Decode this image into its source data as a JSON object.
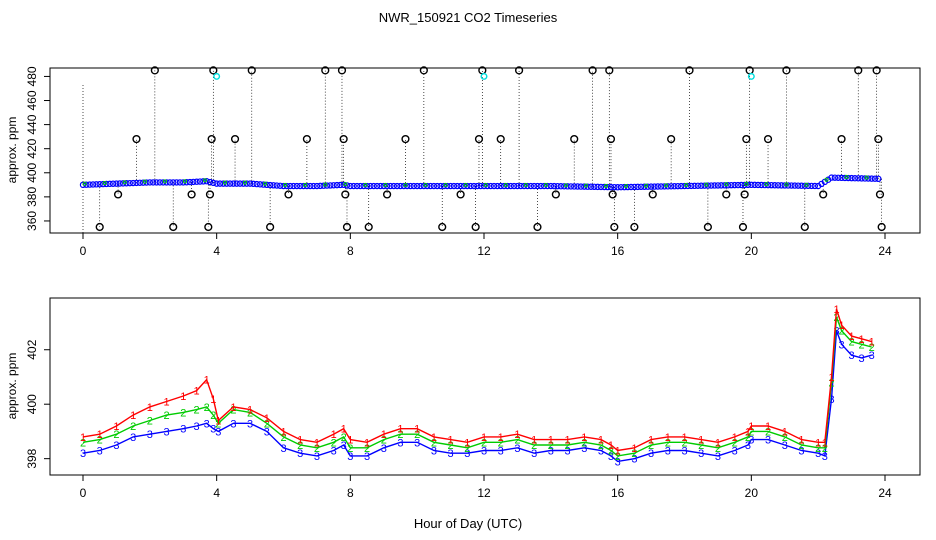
{
  "title": "NWR_150921  CO2 Timeseries",
  "xlabel": "Hour of Day (UTC)",
  "colors": {
    "level1": "#ff0000",
    "level2": "#00cc00",
    "level3": "#0000ff",
    "outlier": "#000000",
    "flag": "#00dddd"
  },
  "chart_data": [
    {
      "type": "scatter",
      "ylabel": "approx. ppm",
      "xlim": [
        0,
        24
      ],
      "ylim": [
        350,
        487
      ],
      "xticks": [
        "0",
        "4",
        "8",
        "12",
        "16",
        "20",
        "24"
      ],
      "yticks": [
        "360",
        "380",
        "400",
        "420",
        "440",
        "460",
        "480"
      ],
      "baseline": [
        {
          "x": 0,
          "y": 390
        },
        {
          "x": 1,
          "y": 391
        },
        {
          "x": 2,
          "y": 392
        },
        {
          "x": 3,
          "y": 392
        },
        {
          "x": 3.7,
          "y": 393
        },
        {
          "x": 4,
          "y": 391
        },
        {
          "x": 5,
          "y": 391
        },
        {
          "x": 6,
          "y": 389
        },
        {
          "x": 7,
          "y": 389
        },
        {
          "x": 7.8,
          "y": 390
        },
        {
          "x": 8,
          "y": 389
        },
        {
          "x": 10,
          "y": 389
        },
        {
          "x": 12,
          "y": 389
        },
        {
          "x": 14,
          "y": 389
        },
        {
          "x": 16,
          "y": 388
        },
        {
          "x": 18,
          "y": 389
        },
        {
          "x": 20,
          "y": 390
        },
        {
          "x": 22,
          "y": 389
        },
        {
          "x": 22.4,
          "y": 396
        },
        {
          "x": 23.8,
          "y": 395
        }
      ],
      "outliers": [
        {
          "x": 0.5,
          "y": 355
        },
        {
          "x": 1.05,
          "y": 382
        },
        {
          "x": 1.6,
          "y": 428
        },
        {
          "x": 2.15,
          "y": 485
        },
        {
          "x": 2.7,
          "y": 355
        },
        {
          "x": 3.25,
          "y": 382
        },
        {
          "x": 3.75,
          "y": 355
        },
        {
          "x": 3.8,
          "y": 382
        },
        {
          "x": 3.85,
          "y": 428
        },
        {
          "x": 3.9,
          "y": 485
        },
        {
          "x": 4.55,
          "y": 428
        },
        {
          "x": 5.05,
          "y": 485
        },
        {
          "x": 5.6,
          "y": 355
        },
        {
          "x": 6.15,
          "y": 382
        },
        {
          "x": 6.7,
          "y": 428
        },
        {
          "x": 7.25,
          "y": 485
        },
        {
          "x": 7.75,
          "y": 485
        },
        {
          "x": 7.8,
          "y": 428
        },
        {
          "x": 7.85,
          "y": 382
        },
        {
          "x": 7.9,
          "y": 355
        },
        {
          "x": 8.55,
          "y": 355
        },
        {
          "x": 9.1,
          "y": 382
        },
        {
          "x": 9.65,
          "y": 428
        },
        {
          "x": 10.2,
          "y": 485
        },
        {
          "x": 10.75,
          "y": 355
        },
        {
          "x": 11.3,
          "y": 382
        },
        {
          "x": 11.75,
          "y": 355
        },
        {
          "x": 11.85,
          "y": 428
        },
        {
          "x": 11.95,
          "y": 485
        },
        {
          "x": 12.5,
          "y": 428
        },
        {
          "x": 13.05,
          "y": 485
        },
        {
          "x": 13.6,
          "y": 355
        },
        {
          "x": 14.15,
          "y": 382
        },
        {
          "x": 14.7,
          "y": 428
        },
        {
          "x": 15.25,
          "y": 485
        },
        {
          "x": 15.75,
          "y": 485
        },
        {
          "x": 15.8,
          "y": 428
        },
        {
          "x": 15.85,
          "y": 382
        },
        {
          "x": 15.9,
          "y": 355
        },
        {
          "x": 16.5,
          "y": 355
        },
        {
          "x": 17.05,
          "y": 382
        },
        {
          "x": 17.6,
          "y": 428
        },
        {
          "x": 18.15,
          "y": 485
        },
        {
          "x": 18.7,
          "y": 355
        },
        {
          "x": 19.25,
          "y": 382
        },
        {
          "x": 19.75,
          "y": 355
        },
        {
          "x": 19.8,
          "y": 382
        },
        {
          "x": 19.85,
          "y": 428
        },
        {
          "x": 19.95,
          "y": 485
        },
        {
          "x": 20.5,
          "y": 428
        },
        {
          "x": 21.05,
          "y": 485
        },
        {
          "x": 21.6,
          "y": 355
        },
        {
          "x": 22.15,
          "y": 382
        },
        {
          "x": 22.7,
          "y": 428
        },
        {
          "x": 23.2,
          "y": 485
        },
        {
          "x": 23.75,
          "y": 485
        },
        {
          "x": 23.8,
          "y": 428
        },
        {
          "x": 23.85,
          "y": 382
        },
        {
          "x": 23.9,
          "y": 355
        }
      ],
      "flags": [
        {
          "x": 4.0,
          "y": 480
        },
        {
          "x": 12.0,
          "y": 480
        },
        {
          "x": 20.0,
          "y": 480
        }
      ]
    },
    {
      "type": "line",
      "ylabel": "approx. ppm",
      "xlim": [
        0,
        24
      ],
      "ylim": [
        397.4,
        403.9
      ],
      "xticks": [
        "0",
        "4",
        "8",
        "12",
        "16",
        "20",
        "24"
      ],
      "yticks": [
        "398",
        "400",
        "402"
      ],
      "series": [
        {
          "name": "1",
          "color": "#ff0000",
          "points": [
            {
              "x": 0.0,
              "y": 398.8
            },
            {
              "x": 0.5,
              "y": 398.9
            },
            {
              "x": 1.0,
              "y": 399.2
            },
            {
              "x": 1.5,
              "y": 399.6
            },
            {
              "x": 2.0,
              "y": 399.9
            },
            {
              "x": 2.5,
              "y": 400.1
            },
            {
              "x": 3.0,
              "y": 400.3
            },
            {
              "x": 3.4,
              "y": 400.5
            },
            {
              "x": 3.7,
              "y": 400.9
            },
            {
              "x": 3.9,
              "y": 400.2
            },
            {
              "x": 4.05,
              "y": 399.4
            },
            {
              "x": 4.5,
              "y": 399.9
            },
            {
              "x": 5.0,
              "y": 399.8
            },
            {
              "x": 5.5,
              "y": 399.5
            },
            {
              "x": 6.0,
              "y": 399.0
            },
            {
              "x": 6.5,
              "y": 398.7
            },
            {
              "x": 7.0,
              "y": 398.6
            },
            {
              "x": 7.5,
              "y": 398.9
            },
            {
              "x": 7.8,
              "y": 399.1
            },
            {
              "x": 8.0,
              "y": 398.7
            },
            {
              "x": 8.5,
              "y": 398.6
            },
            {
              "x": 9.0,
              "y": 398.9
            },
            {
              "x": 9.5,
              "y": 399.1
            },
            {
              "x": 10.0,
              "y": 399.1
            },
            {
              "x": 10.5,
              "y": 398.8
            },
            {
              "x": 11.0,
              "y": 398.7
            },
            {
              "x": 11.5,
              "y": 398.6
            },
            {
              "x": 12.0,
              "y": 398.8
            },
            {
              "x": 12.5,
              "y": 398.8
            },
            {
              "x": 13.0,
              "y": 398.9
            },
            {
              "x": 13.5,
              "y": 398.7
            },
            {
              "x": 14.0,
              "y": 398.7
            },
            {
              "x": 14.5,
              "y": 398.7
            },
            {
              "x": 15.0,
              "y": 398.8
            },
            {
              "x": 15.5,
              "y": 398.7
            },
            {
              "x": 15.8,
              "y": 398.5
            },
            {
              "x": 16.0,
              "y": 398.3
            },
            {
              "x": 16.5,
              "y": 398.4
            },
            {
              "x": 17.0,
              "y": 398.7
            },
            {
              "x": 17.5,
              "y": 398.8
            },
            {
              "x": 18.0,
              "y": 398.8
            },
            {
              "x": 18.5,
              "y": 398.7
            },
            {
              "x": 19.0,
              "y": 398.6
            },
            {
              "x": 19.5,
              "y": 398.8
            },
            {
              "x": 19.9,
              "y": 399.0
            },
            {
              "x": 20.0,
              "y": 399.2
            },
            {
              "x": 20.5,
              "y": 399.2
            },
            {
              "x": 21.0,
              "y": 399.0
            },
            {
              "x": 21.5,
              "y": 398.7
            },
            {
              "x": 22.0,
              "y": 398.6
            },
            {
              "x": 22.2,
              "y": 398.6
            },
            {
              "x": 22.4,
              "y": 401.0
            },
            {
              "x": 22.55,
              "y": 403.5
            },
            {
              "x": 22.7,
              "y": 402.9
            },
            {
              "x": 23.0,
              "y": 402.5
            },
            {
              "x": 23.3,
              "y": 402.4
            },
            {
              "x": 23.6,
              "y": 402.3
            }
          ]
        },
        {
          "name": "2",
          "color": "#00cc00",
          "points": [
            {
              "x": 0.0,
              "y": 398.6
            },
            {
              "x": 0.5,
              "y": 398.7
            },
            {
              "x": 1.0,
              "y": 398.9
            },
            {
              "x": 1.5,
              "y": 399.2
            },
            {
              "x": 2.0,
              "y": 399.4
            },
            {
              "x": 2.5,
              "y": 399.6
            },
            {
              "x": 3.0,
              "y": 399.7
            },
            {
              "x": 3.4,
              "y": 399.8
            },
            {
              "x": 3.7,
              "y": 399.9
            },
            {
              "x": 3.9,
              "y": 399.6
            },
            {
              "x": 4.05,
              "y": 399.3
            },
            {
              "x": 4.5,
              "y": 399.8
            },
            {
              "x": 5.0,
              "y": 399.7
            },
            {
              "x": 5.5,
              "y": 399.3
            },
            {
              "x": 6.0,
              "y": 398.8
            },
            {
              "x": 6.5,
              "y": 398.5
            },
            {
              "x": 7.0,
              "y": 398.4
            },
            {
              "x": 7.5,
              "y": 398.6
            },
            {
              "x": 7.8,
              "y": 398.8
            },
            {
              "x": 8.0,
              "y": 398.4
            },
            {
              "x": 8.5,
              "y": 398.4
            },
            {
              "x": 9.0,
              "y": 398.7
            },
            {
              "x": 9.5,
              "y": 398.9
            },
            {
              "x": 10.0,
              "y": 398.9
            },
            {
              "x": 10.5,
              "y": 398.6
            },
            {
              "x": 11.0,
              "y": 398.5
            },
            {
              "x": 11.5,
              "y": 398.4
            },
            {
              "x": 12.0,
              "y": 398.6
            },
            {
              "x": 12.5,
              "y": 398.6
            },
            {
              "x": 13.0,
              "y": 398.7
            },
            {
              "x": 13.5,
              "y": 398.5
            },
            {
              "x": 14.0,
              "y": 398.5
            },
            {
              "x": 14.5,
              "y": 398.5
            },
            {
              "x": 15.0,
              "y": 398.6
            },
            {
              "x": 15.5,
              "y": 398.5
            },
            {
              "x": 15.8,
              "y": 398.3
            },
            {
              "x": 16.0,
              "y": 398.1
            },
            {
              "x": 16.5,
              "y": 398.2
            },
            {
              "x": 17.0,
              "y": 398.5
            },
            {
              "x": 17.5,
              "y": 398.6
            },
            {
              "x": 18.0,
              "y": 398.6
            },
            {
              "x": 18.5,
              "y": 398.5
            },
            {
              "x": 19.0,
              "y": 398.4
            },
            {
              "x": 19.5,
              "y": 398.6
            },
            {
              "x": 19.9,
              "y": 398.8
            },
            {
              "x": 20.0,
              "y": 399.0
            },
            {
              "x": 20.5,
              "y": 399.0
            },
            {
              "x": 21.0,
              "y": 398.8
            },
            {
              "x": 21.5,
              "y": 398.5
            },
            {
              "x": 22.0,
              "y": 398.4
            },
            {
              "x": 22.2,
              "y": 398.4
            },
            {
              "x": 22.4,
              "y": 400.8
            },
            {
              "x": 22.55,
              "y": 403.2
            },
            {
              "x": 22.7,
              "y": 402.7
            },
            {
              "x": 23.0,
              "y": 402.3
            },
            {
              "x": 23.3,
              "y": 402.2
            },
            {
              "x": 23.6,
              "y": 402.1
            }
          ]
        },
        {
          "name": "3",
          "color": "#0000ff",
          "points": [
            {
              "x": 0.0,
              "y": 398.2
            },
            {
              "x": 0.5,
              "y": 398.3
            },
            {
              "x": 1.0,
              "y": 398.5
            },
            {
              "x": 1.5,
              "y": 398.8
            },
            {
              "x": 2.0,
              "y": 398.9
            },
            {
              "x": 2.5,
              "y": 399.0
            },
            {
              "x": 3.0,
              "y": 399.1
            },
            {
              "x": 3.4,
              "y": 399.2
            },
            {
              "x": 3.7,
              "y": 399.3
            },
            {
              "x": 3.9,
              "y": 399.1
            },
            {
              "x": 4.05,
              "y": 399.0
            },
            {
              "x": 4.5,
              "y": 399.3
            },
            {
              "x": 5.0,
              "y": 399.3
            },
            {
              "x": 5.5,
              "y": 399.0
            },
            {
              "x": 6.0,
              "y": 398.4
            },
            {
              "x": 6.5,
              "y": 398.2
            },
            {
              "x": 7.0,
              "y": 398.1
            },
            {
              "x": 7.5,
              "y": 398.3
            },
            {
              "x": 7.8,
              "y": 398.5
            },
            {
              "x": 8.0,
              "y": 398.1
            },
            {
              "x": 8.5,
              "y": 398.1
            },
            {
              "x": 9.0,
              "y": 398.4
            },
            {
              "x": 9.5,
              "y": 398.6
            },
            {
              "x": 10.0,
              "y": 398.6
            },
            {
              "x": 10.5,
              "y": 398.3
            },
            {
              "x": 11.0,
              "y": 398.2
            },
            {
              "x": 11.5,
              "y": 398.2
            },
            {
              "x": 12.0,
              "y": 398.3
            },
            {
              "x": 12.5,
              "y": 398.3
            },
            {
              "x": 13.0,
              "y": 398.4
            },
            {
              "x": 13.5,
              "y": 398.2
            },
            {
              "x": 14.0,
              "y": 398.3
            },
            {
              "x": 14.5,
              "y": 398.3
            },
            {
              "x": 15.0,
              "y": 398.4
            },
            {
              "x": 15.5,
              "y": 398.3
            },
            {
              "x": 15.8,
              "y": 398.1
            },
            {
              "x": 16.0,
              "y": 397.9
            },
            {
              "x": 16.5,
              "y": 398.0
            },
            {
              "x": 17.0,
              "y": 398.2
            },
            {
              "x": 17.5,
              "y": 398.3
            },
            {
              "x": 18.0,
              "y": 398.3
            },
            {
              "x": 18.5,
              "y": 398.2
            },
            {
              "x": 19.0,
              "y": 398.1
            },
            {
              "x": 19.5,
              "y": 398.3
            },
            {
              "x": 19.9,
              "y": 398.5
            },
            {
              "x": 20.0,
              "y": 398.7
            },
            {
              "x": 20.5,
              "y": 398.7
            },
            {
              "x": 21.0,
              "y": 398.5
            },
            {
              "x": 21.5,
              "y": 398.3
            },
            {
              "x": 22.0,
              "y": 398.2
            },
            {
              "x": 22.2,
              "y": 398.1
            },
            {
              "x": 22.4,
              "y": 400.2
            },
            {
              "x": 22.55,
              "y": 402.7
            },
            {
              "x": 22.7,
              "y": 402.2
            },
            {
              "x": 23.0,
              "y": 401.8
            },
            {
              "x": 23.3,
              "y": 401.7
            },
            {
              "x": 23.6,
              "y": 401.8
            }
          ]
        }
      ]
    }
  ]
}
